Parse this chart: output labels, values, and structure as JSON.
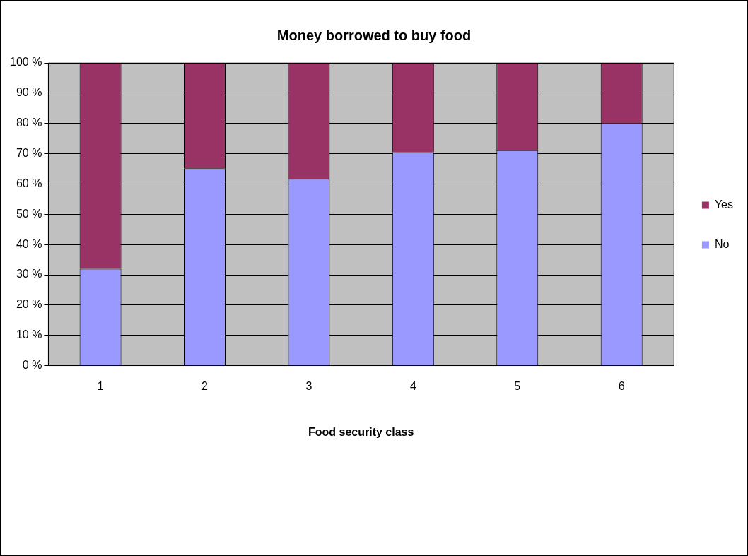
{
  "chart_data": {
    "type": "bar",
    "title": "Money borrowed to buy food",
    "xlabel": "Food security class",
    "categories": [
      "1",
      "2",
      "3",
      "4",
      "5",
      "6"
    ],
    "stacked": true,
    "series": [
      {
        "name": "No",
        "color": "#9999ff",
        "values": [
          32,
          65.2,
          61.7,
          70.5,
          71.1,
          80
        ]
      },
      {
        "name": "Yes",
        "color": "#993366",
        "values": [
          68,
          34.8,
          38.3,
          29.5,
          28.9,
          20
        ]
      }
    ],
    "ylim": [
      0,
      100
    ],
    "yticks": [
      {
        "value": 0,
        "label": "0 %"
      },
      {
        "value": 10,
        "label": "10 %"
      },
      {
        "value": 20,
        "label": "20 %"
      },
      {
        "value": 30,
        "label": "30 %"
      },
      {
        "value": 40,
        "label": "40 %"
      },
      {
        "value": 50,
        "label": "50 %"
      },
      {
        "value": 60,
        "label": "60 %"
      },
      {
        "value": 70,
        "label": "70 %"
      },
      {
        "value": 80,
        "label": "80 %"
      },
      {
        "value": 90,
        "label": "90 %"
      },
      {
        "value": 100,
        "label": "100 %"
      }
    ],
    "grid": "y",
    "legend": "right"
  }
}
